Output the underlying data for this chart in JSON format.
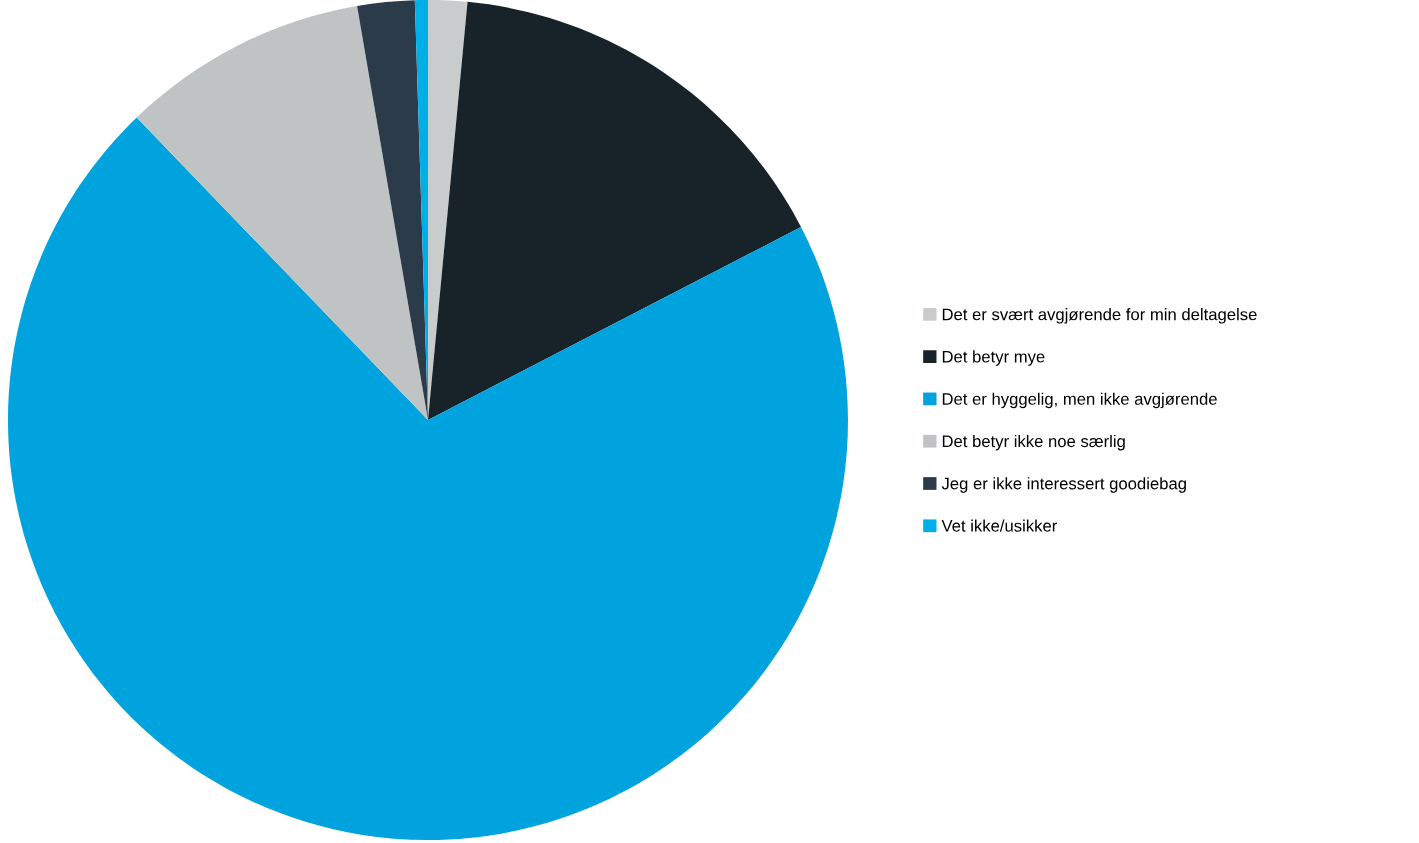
{
  "chart_data": {
    "type": "pie",
    "categories": [
      "Det er svært avgjørende for min deltagelse",
      "Det betyr mye",
      "Det er hyggelig, men ikke avgjørende",
      "Det betyr ikke noe særlig",
      "Jeg er ikke interessert goodiebag",
      "Vet ikke/usikker"
    ],
    "values": [
      1.5,
      15.9,
      70.4,
      9.5,
      2.2,
      0.5
    ],
    "colors": [
      "#c8cccd",
      "#172329",
      "#00a3dd",
      "#bfc3c4",
      "#2c3b49",
      "#00aee8"
    ],
    "legend": "right"
  }
}
